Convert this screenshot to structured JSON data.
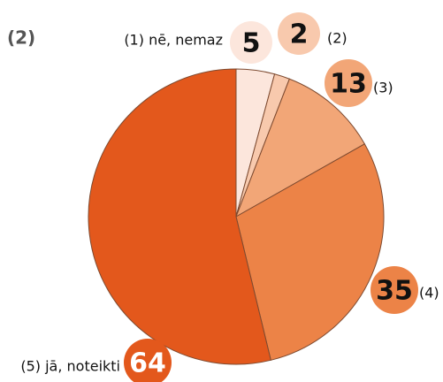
{
  "chart_data": {
    "type": "pie",
    "title": "(2)",
    "categories": [
      "(1) nē, nemaz",
      "(2)",
      "(3)",
      "(4)",
      "(5) jā, noteikti"
    ],
    "values": [
      5,
      2,
      13,
      35,
      64
    ],
    "colors": [
      "#fce6dc",
      "#f8c9ad",
      "#f2a677",
      "#ec8347",
      "#e3581c"
    ],
    "value_label_colors": [
      "#111111",
      "#111111",
      "#111111",
      "#111111",
      "#ffffff"
    ]
  }
}
